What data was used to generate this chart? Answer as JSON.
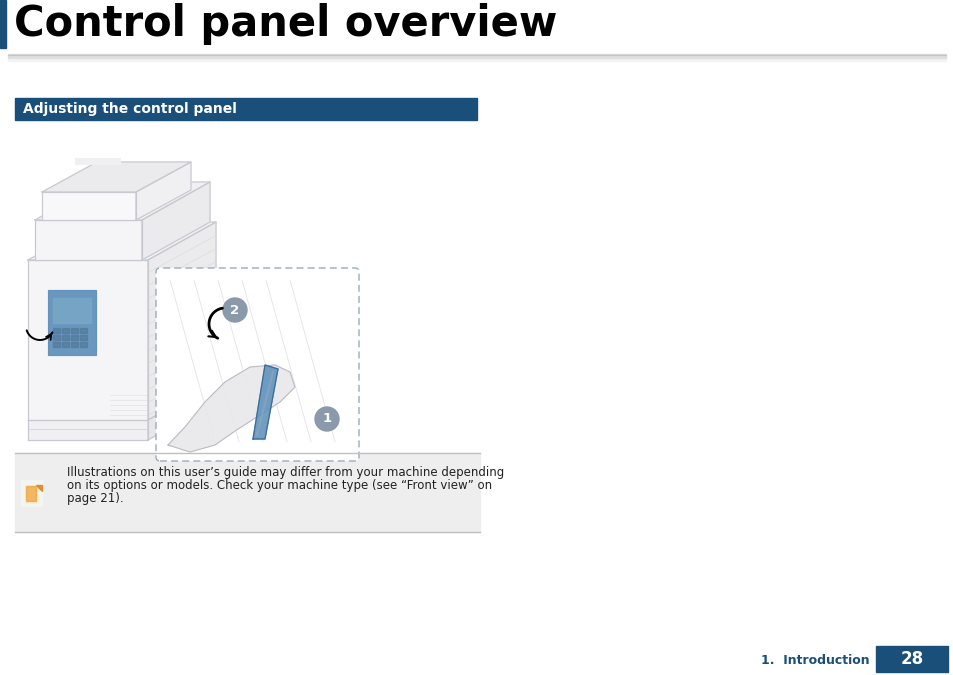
{
  "title": "Control panel overview",
  "title_fontsize": 30,
  "title_color": "#000000",
  "title_bar_color": "#1a4f7a",
  "section_header": "Adjusting the control panel",
  "section_header_bg": "#1a4f7a",
  "section_header_text_color": "#ffffff",
  "section_header_fontsize": 10,
  "note_line1": "Illustrations on this user’s guide may differ from your machine depending",
  "note_line2": "on its options or models. Check your machine type (see “Front view” on",
  "note_line3": "page 21).",
  "note_fontsize": 8.5,
  "footer_section": "1.  Introduction",
  "footer_page": "28",
  "footer_bg": "#1a4f7a",
  "footer_text_color": "#1a4f7a",
  "footer_page_text_color": "#ffffff",
  "bg_color": "#ffffff",
  "printer_line_color": "#c8c8d0",
  "printer_fill_color": "#f5f5f8",
  "printer_fill_right": "#ebebee",
  "printer_fill_top": "#f0f0f3",
  "panel_color": "#5b8db8",
  "panel_dark": "#3a6a96",
  "badge_color": "#8a9aaa"
}
